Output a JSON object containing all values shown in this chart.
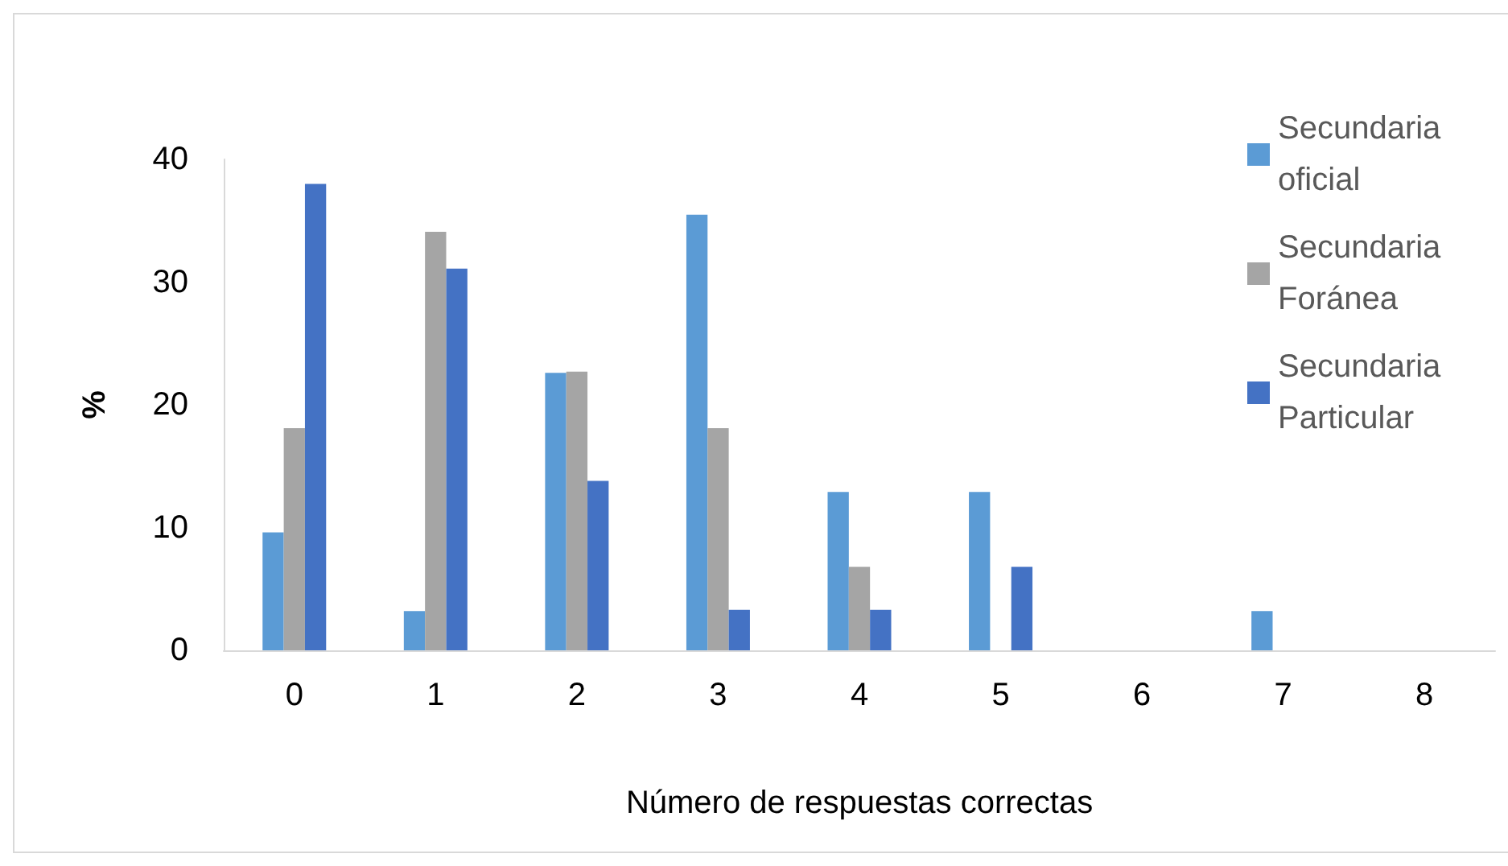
{
  "chart_data": {
    "type": "bar",
    "xlabel": "Número de respuestas correctas",
    "ylabel": "%",
    "categories": [
      "0",
      "1",
      "2",
      "3",
      "4",
      "5",
      "6",
      "7",
      "8"
    ],
    "series": [
      {
        "name": "Secundaria oficial",
        "color": "#5b9bd5",
        "values": [
          9.6,
          3.2,
          22.6,
          35.5,
          12.9,
          12.9,
          0,
          3.2,
          0
        ]
      },
      {
        "name": "Secundaria Foránea",
        "color": "#a5a5a5",
        "values": [
          18.1,
          34.1,
          22.7,
          18.1,
          6.8,
          0,
          0,
          0,
          0
        ]
      },
      {
        "name": "Secundaria Particular",
        "color": "#4472c4",
        "values": [
          38.0,
          31.1,
          13.8,
          3.3,
          3.3,
          6.8,
          0,
          0,
          0
        ]
      }
    ],
    "ylim": [
      0,
      40
    ],
    "yticks": [
      0,
      10,
      20,
      30,
      40
    ],
    "grid": false,
    "legend": "top right"
  }
}
